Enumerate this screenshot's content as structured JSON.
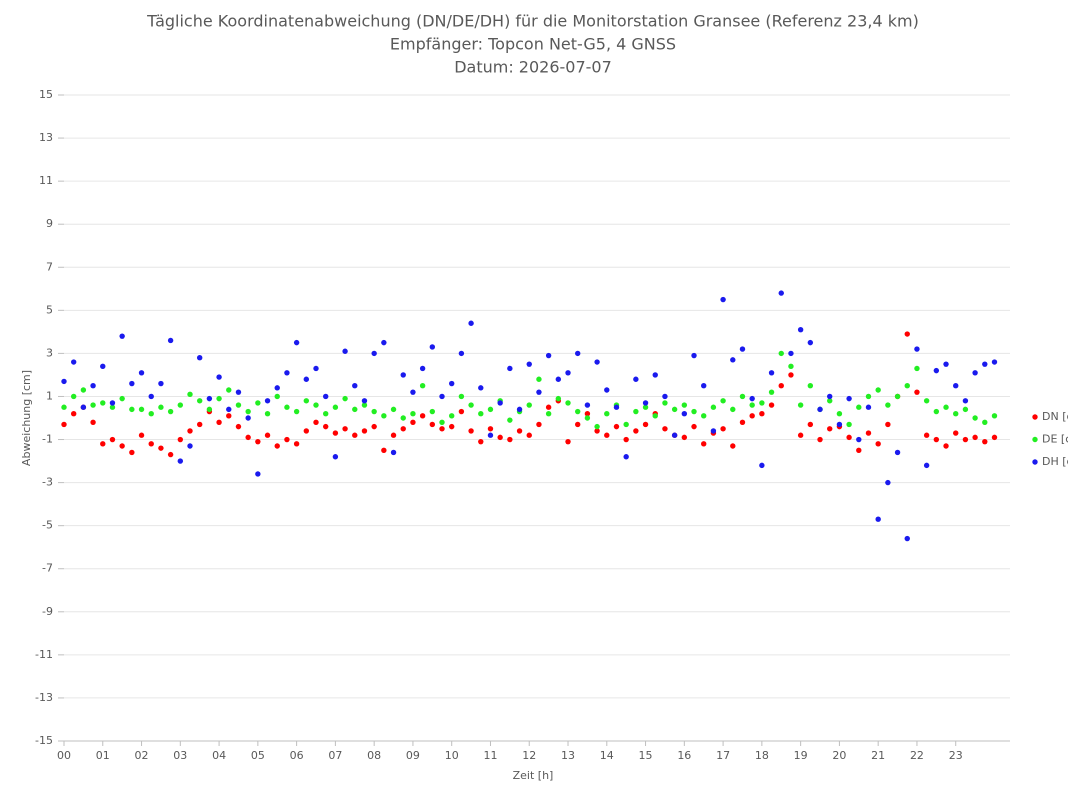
{
  "chart_data": {
    "type": "scatter",
    "title": "Tägliche Koordinatenabweichung (DN/DE/DH) für die Monitorstation Gransee (Referenz 23,4 km)",
    "subtitle": [
      "Empfänger: Topcon Net-G5, 4 GNSS",
      "Datum: 2026-07-07"
    ],
    "xlabel": "Zeit [h]",
    "ylabel": "Abweichung [cm]",
    "xlim": [
      0,
      24.4
    ],
    "ylim": [
      -15,
      15
    ],
    "xticks": [
      {
        "value": 0,
        "label": "00"
      },
      {
        "value": 1,
        "label": "01"
      },
      {
        "value": 2,
        "label": "02"
      },
      {
        "value": 3,
        "label": "03"
      },
      {
        "value": 4,
        "label": "04"
      },
      {
        "value": 5,
        "label": "05"
      },
      {
        "value": 6,
        "label": "06"
      },
      {
        "value": 7,
        "label": "07"
      },
      {
        "value": 8,
        "label": "08"
      },
      {
        "value": 9,
        "label": "09"
      },
      10,
      11,
      12,
      13,
      14,
      15,
      16,
      17,
      18,
      19,
      20,
      21,
      22,
      23
    ],
    "yticks": [
      -15,
      -13,
      -11,
      -9,
      -7,
      -5,
      -3,
      -1,
      1,
      3,
      5,
      7,
      9,
      11,
      13,
      15
    ],
    "grid": true,
    "legend": "right",
    "x": [
      0,
      0.25,
      0.5,
      0.75,
      1,
      1.25,
      1.5,
      1.75,
      2,
      2.25,
      2.5,
      2.75,
      3,
      3.25,
      3.5,
      3.75,
      4,
      4.25,
      4.5,
      4.75,
      5,
      5.25,
      5.5,
      5.75,
      6,
      6.25,
      6.5,
      6.75,
      7,
      7.25,
      7.5,
      7.75,
      8,
      8.25,
      8.5,
      8.75,
      9,
      9.25,
      9.5,
      9.75,
      10,
      10.25,
      10.5,
      10.75,
      11,
      11.25,
      11.5,
      11.75,
      12,
      12.25,
      12.5,
      12.75,
      13,
      13.25,
      13.5,
      13.75,
      14,
      14.25,
      14.5,
      14.75,
      15,
      15.25,
      15.5,
      15.75,
      16,
      16.25,
      16.5,
      16.75,
      17,
      17.25,
      17.5,
      17.75,
      18,
      18.25,
      18.5,
      18.75,
      19,
      19.25,
      19.5,
      19.75,
      20,
      20.25,
      20.5,
      20.75,
      21,
      21.25,
      21.5,
      21.75,
      22,
      22.25,
      22.5,
      22.75,
      23,
      23.25,
      23.5,
      23.75,
      24
    ],
    "series": [
      {
        "name": "DN [cm]",
        "color": "#ff0000",
        "values": [
          -0.3,
          0.2,
          0.5,
          -0.2,
          -1.2,
          -1.0,
          -1.3,
          -1.6,
          -0.8,
          -1.2,
          -1.4,
          -1.7,
          -1.0,
          -0.6,
          -0.3,
          0.3,
          -0.2,
          0.1,
          -0.4,
          -0.9,
          -1.1,
          -0.8,
          -1.3,
          -1.0,
          -1.2,
          -0.6,
          -0.2,
          -0.4,
          -0.7,
          -0.5,
          -0.8,
          -0.6,
          -0.4,
          -1.5,
          -0.8,
          -0.5,
          -0.2,
          0.1,
          -0.3,
          -0.5,
          -0.4,
          0.3,
          -0.6,
          -1.1,
          -0.5,
          -0.9,
          -1.0,
          -0.6,
          -0.8,
          -0.3,
          0.5,
          0.8,
          -1.1,
          -0.3,
          0.2,
          -0.6,
          -0.8,
          -0.4,
          -1.0,
          -0.6,
          -0.3,
          0.2,
          -0.5,
          -0.8,
          -0.9,
          -0.4,
          -1.2,
          -0.7,
          -0.5,
          -1.3,
          -0.2,
          0.1,
          0.2,
          0.6,
          1.5,
          2.0,
          -0.8,
          -0.3,
          -1.0,
          -0.5,
          -0.4,
          -0.9,
          -1.5,
          -0.7,
          -1.2,
          -0.3,
          1.0,
          3.9,
          1.2,
          -0.8,
          -1.0,
          -1.3,
          -0.7,
          -1.0,
          -0.9,
          -1.1,
          -0.9
        ]
      },
      {
        "name": "DE [cm]",
        "color": "#22ee22",
        "values": [
          0.5,
          1.0,
          1.3,
          0.6,
          0.7,
          0.5,
          0.9,
          0.4,
          0.4,
          0.2,
          0.5,
          0.3,
          0.6,
          1.1,
          0.8,
          0.4,
          0.9,
          1.3,
          0.6,
          0.3,
          0.7,
          0.2,
          1.0,
          0.5,
          0.3,
          0.8,
          0.6,
          0.2,
          0.5,
          0.9,
          0.4,
          0.6,
          0.3,
          0.1,
          0.4,
          0.0,
          0.2,
          1.5,
          0.3,
          -0.2,
          0.1,
          1.0,
          0.6,
          0.2,
          0.4,
          0.8,
          -0.1,
          0.3,
          0.6,
          1.8,
          0.2,
          0.9,
          0.7,
          0.3,
          0.0,
          -0.4,
          0.2,
          0.6,
          -0.3,
          0.3,
          0.5,
          0.1,
          0.7,
          0.4,
          0.6,
          0.3,
          0.1,
          0.5,
          0.8,
          0.4,
          1.0,
          0.6,
          0.7,
          1.2,
          3.0,
          2.4,
          0.6,
          1.5,
          0.4,
          0.8,
          0.2,
          -0.3,
          0.5,
          1.0,
          1.3,
          0.6,
          1.0,
          1.5,
          2.3,
          0.8,
          0.3,
          0.5,
          0.2,
          0.4,
          0.0,
          -0.2,
          0.1
        ]
      },
      {
        "name": "DH [cm]",
        "color": "#1a1aee",
        "values": [
          1.7,
          2.6,
          0.5,
          1.5,
          2.4,
          0.7,
          3.8,
          1.6,
          2.1,
          1.0,
          1.6,
          3.6,
          -2.0,
          -1.3,
          2.8,
          0.9,
          1.9,
          0.4,
          1.2,
          0.0,
          -2.6,
          0.8,
          1.4,
          2.1,
          3.5,
          1.8,
          2.3,
          1.0,
          -1.8,
          3.1,
          1.5,
          0.8,
          3.0,
          3.5,
          -1.6,
          2.0,
          1.2,
          2.3,
          3.3,
          1.0,
          1.6,
          3.0,
          4.4,
          1.4,
          -0.8,
          0.7,
          2.3,
          0.4,
          2.5,
          1.2,
          2.9,
          1.8,
          2.1,
          3.0,
          0.6,
          2.6,
          1.3,
          0.5,
          -1.8,
          1.8,
          0.7,
          2.0,
          1.0,
          -0.8,
          0.2,
          2.9,
          1.5,
          -0.6,
          5.5,
          2.7,
          3.2,
          0.9,
          -2.2,
          2.1,
          5.8,
          3.0,
          4.1,
          3.5,
          0.4,
          1.0,
          -0.3,
          0.9,
          -1.0,
          0.5,
          -4.7,
          -3.0,
          -1.6,
          -5.6,
          3.2,
          -2.2,
          2.2,
          2.5,
          1.5,
          0.8,
          2.1,
          2.5,
          2.6
        ]
      }
    ]
  }
}
